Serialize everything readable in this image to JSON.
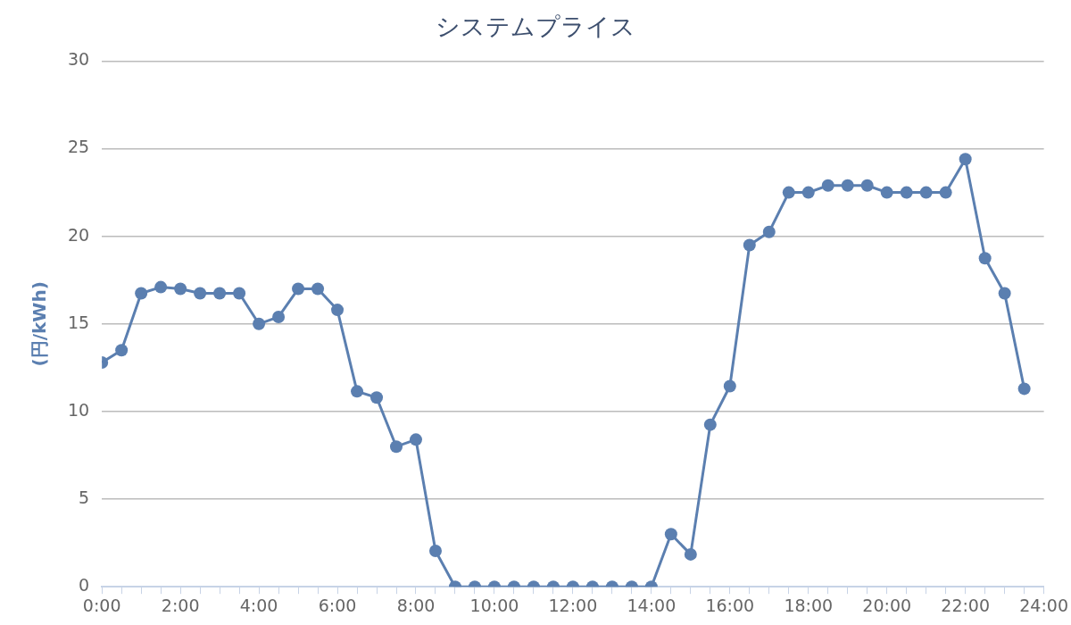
{
  "chart_data": {
    "type": "line",
    "title": "システムプライス",
    "ylabel": "(円/kWh)",
    "x": [
      0,
      0.5,
      1,
      1.5,
      2,
      2.5,
      3,
      3.5,
      4,
      4.5,
      5,
      5.5,
      6,
      6.5,
      7,
      7.5,
      8,
      8.5,
      9,
      9.5,
      10,
      10.5,
      11,
      11.5,
      12,
      12.5,
      13,
      13.5,
      14,
      14.5,
      15,
      15.5,
      16,
      16.5,
      17,
      17.5,
      18,
      18.5,
      19,
      19.5,
      20,
      20.5,
      21,
      21.5,
      22,
      22.5,
      23,
      23.5
    ],
    "series": [
      {
        "color": "#5b7fb0",
        "values": [
          12.8,
          13.5,
          16.75,
          17.1,
          17.0,
          16.75,
          16.75,
          16.75,
          15.0,
          15.4,
          17.0,
          17.0,
          15.8,
          11.15,
          10.8,
          8.0,
          8.4,
          2.05,
          0,
          0,
          0,
          0,
          0,
          0,
          0,
          0,
          0,
          0,
          0,
          3.0,
          1.85,
          9.25,
          11.45,
          19.5,
          20.25,
          22.5,
          22.5,
          22.9,
          22.9,
          22.9,
          22.5,
          22.5,
          22.5,
          22.5,
          24.4,
          18.75,
          16.75,
          11.3
        ]
      }
    ],
    "xlim": [
      0,
      24
    ],
    "xticks": [
      {
        "value": 0,
        "label": "0:00"
      },
      {
        "value": 0.5,
        "label": null
      },
      {
        "value": 1,
        "label": null
      },
      {
        "value": 1.5,
        "label": null
      },
      {
        "value": 2,
        "label": "2:00"
      },
      {
        "value": 2.5,
        "label": null
      },
      {
        "value": 3,
        "label": null
      },
      {
        "value": 3.5,
        "label": null
      },
      {
        "value": 4,
        "label": "4:00"
      },
      {
        "value": 4.5,
        "label": null
      },
      {
        "value": 5,
        "label": null
      },
      {
        "value": 5.5,
        "label": null
      },
      {
        "value": 6,
        "label": "6:00"
      },
      {
        "value": 6.5,
        "label": null
      },
      {
        "value": 7,
        "label": null
      },
      {
        "value": 7.5,
        "label": null
      },
      {
        "value": 8,
        "label": "8:00"
      },
      {
        "value": 8.5,
        "label": null
      },
      {
        "value": 9,
        "label": null
      },
      {
        "value": 9.5,
        "label": null
      },
      {
        "value": 10,
        "label": "10:00"
      },
      {
        "value": 10.5,
        "label": null
      },
      {
        "value": 11,
        "label": null
      },
      {
        "value": 11.5,
        "label": null
      },
      {
        "value": 12,
        "label": "12:00"
      },
      {
        "value": 12.5,
        "label": null
      },
      {
        "value": 13,
        "label": null
      },
      {
        "value": 13.5,
        "label": null
      },
      {
        "value": 14,
        "label": "14:00"
      },
      {
        "value": 14.5,
        "label": null
      },
      {
        "value": 15,
        "label": null
      },
      {
        "value": 15.5,
        "label": null
      },
      {
        "value": 16,
        "label": "16:00"
      },
      {
        "value": 16.5,
        "label": null
      },
      {
        "value": 17,
        "label": null
      },
      {
        "value": 17.5,
        "label": null
      },
      {
        "value": 18,
        "label": "18:00"
      },
      {
        "value": 18.5,
        "label": null
      },
      {
        "value": 19,
        "label": null
      },
      {
        "value": 19.5,
        "label": null
      },
      {
        "value": 20,
        "label": "20:00"
      },
      {
        "value": 20.5,
        "label": null
      },
      {
        "value": 21,
        "label": null
      },
      {
        "value": 21.5,
        "label": null
      },
      {
        "value": 22,
        "label": "22:00"
      },
      {
        "value": 22.5,
        "label": null
      },
      {
        "value": 23,
        "label": null
      },
      {
        "value": 23.5,
        "label": null
      },
      {
        "value": 24,
        "label": "24:00"
      }
    ],
    "ylim": [
      0,
      30
    ],
    "yticks": [
      0,
      5,
      10,
      15,
      20,
      25,
      30
    ],
    "grid": "y",
    "legend": false,
    "marker": "circle",
    "line_style": "solid"
  }
}
